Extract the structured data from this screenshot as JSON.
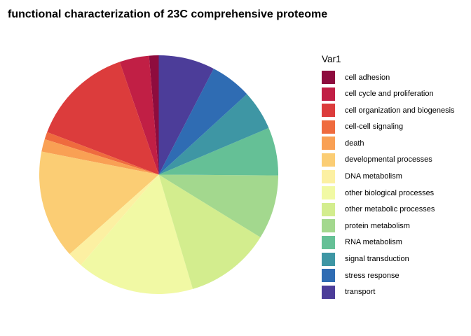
{
  "title": "functional characterization of 23C comprehensive proteome",
  "legend": {
    "title": "Var1"
  },
  "chart_data": {
    "type": "pie",
    "title": "functional characterization of 23C comprehensive proteome",
    "legend_title": "Var1",
    "categories": [
      "cell adhesion",
      "cell cycle and proliferation",
      "cell organization and biogenesis",
      "cell-cell signaling",
      "death",
      "developmental processes",
      "DNA metabolism",
      "other biological processes",
      "other metabolic processes",
      "protein metabolism",
      "RNA metabolism",
      "signal transduction",
      "stress response",
      "transport"
    ],
    "values": [
      1.3,
      4.0,
      13.9,
      1.0,
      1.7,
      14.7,
      2.1,
      15.9,
      11.6,
      8.7,
      6.5,
      5.4,
      5.6,
      7.6
    ],
    "unit": "percent (estimated from slice angles)",
    "colors": [
      "#8E0C3E",
      "#C11F45",
      "#DC3C3C",
      "#EF6B3E",
      "#F9A054",
      "#FBCD74",
      "#FCF0A2",
      "#F1F9A4",
      "#D3ED8E",
      "#A3D88E",
      "#65C096",
      "#3E96A4",
      "#2F6CB3",
      "#4C3D99"
    ],
    "layout": {
      "start_angle_deg": 0,
      "start_position": "12-oclock",
      "direction": "counterclockwise-in-listed-order",
      "legend_position": "right",
      "slice_labels": false,
      "background": "#ffffff"
    }
  }
}
